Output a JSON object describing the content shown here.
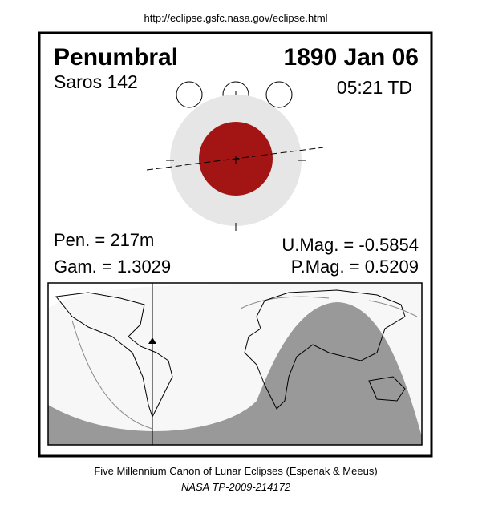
{
  "source_url": "http://eclipse.gsfc.nasa.gov/eclipse.html",
  "header": {
    "eclipse_type": "Penumbral",
    "date": "1890 Jan 06",
    "saros": "Saros 142",
    "time": "05:21 TD"
  },
  "parameters": {
    "pen": "Pen. = 217m",
    "gam": "Gam. = 1.3029",
    "umag": "U.Mag. = -0.5854",
    "pmag": "P.Mag. = 0.5209"
  },
  "footer": {
    "line1": "Five Millennium Canon of Lunar Eclipses (Espenak & Meeus)",
    "line2": "NASA TP-2009-214172"
  }
}
